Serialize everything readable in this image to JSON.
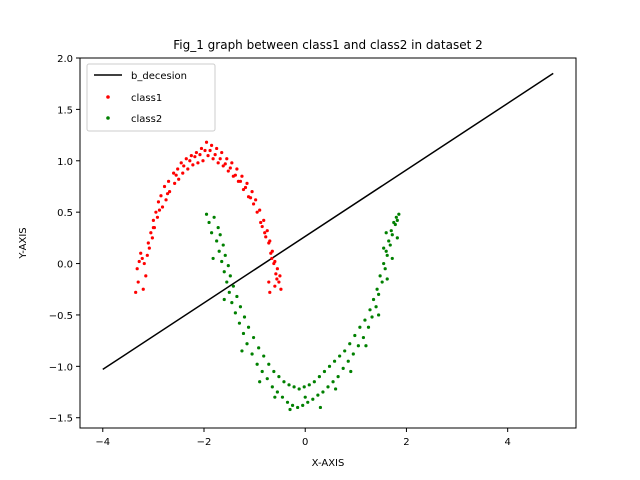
{
  "chart_data": {
    "type": "scatter",
    "title": "Fig_1 graph between class1 and class2 in dataset 2",
    "xlabel": "X-AXIS",
    "ylabel": "Y-AXIS",
    "xlim": [
      -4.45,
      5.35
    ],
    "ylim": [
      -1.6,
      2.0
    ],
    "xticks": [
      -4,
      -2,
      0,
      2,
      4
    ],
    "xtick_labels": [
      "−4",
      "−2",
      "0",
      "2",
      "4"
    ],
    "yticks": [
      -1.5,
      -1.0,
      -0.5,
      0.0,
      0.5,
      1.0,
      1.5,
      2.0
    ],
    "ytick_labels": [
      "−1.5",
      "−1.0",
      "−0.5",
      "0.0",
      "0.5",
      "1.0",
      "1.5",
      "2.0"
    ],
    "grid": false,
    "legend_position": "top-left",
    "series": [
      {
        "name": "b_decesion",
        "kind": "line",
        "color": "#000000",
        "x": [
          -4.0,
          4.9
        ],
        "y": [
          -1.03,
          1.85
        ]
      },
      {
        "name": "class1",
        "kind": "scatter",
        "color": "#ff0000",
        "points": [
          [
            -3.35,
            -0.28
          ],
          [
            -3.3,
            -0.18
          ],
          [
            -3.32,
            -0.05
          ],
          [
            -3.28,
            0.02
          ],
          [
            -3.25,
            0.1
          ],
          [
            -3.2,
            -0.25
          ],
          [
            -3.15,
            -0.12
          ],
          [
            -3.18,
            0.0
          ],
          [
            -3.1,
            0.2
          ],
          [
            -3.12,
            0.08
          ],
          [
            -3.05,
            0.3
          ],
          [
            -3.08,
            0.15
          ],
          [
            -3.0,
            0.42
          ],
          [
            -3.02,
            0.25
          ],
          [
            -2.95,
            0.5
          ],
          [
            -2.98,
            0.35
          ],
          [
            -2.9,
            0.6
          ],
          [
            -2.92,
            0.45
          ],
          [
            -2.85,
            0.66
          ],
          [
            -2.82,
            0.55
          ],
          [
            -2.78,
            0.75
          ],
          [
            -2.75,
            0.62
          ],
          [
            -2.7,
            0.8
          ],
          [
            -2.68,
            0.7
          ],
          [
            -2.6,
            0.88
          ],
          [
            -2.58,
            0.78
          ],
          [
            -2.52,
            0.92
          ],
          [
            -2.5,
            0.82
          ],
          [
            -2.45,
            0.98
          ],
          [
            -2.42,
            0.88
          ],
          [
            -2.35,
            1.02
          ],
          [
            -2.32,
            0.92
          ],
          [
            -2.25,
            1.05
          ],
          [
            -2.22,
            0.96
          ],
          [
            -2.15,
            1.08
          ],
          [
            -2.12,
            0.98
          ],
          [
            -2.05,
            1.12
          ],
          [
            -2.02,
            1.0
          ],
          [
            -1.95,
            1.18
          ],
          [
            -1.92,
            1.05
          ],
          [
            -1.85,
            1.15
          ],
          [
            -1.82,
            1.02
          ],
          [
            -1.75,
            1.12
          ],
          [
            -1.72,
            0.98
          ],
          [
            -1.65,
            1.08
          ],
          [
            -1.62,
            0.95
          ],
          [
            -1.55,
            1.02
          ],
          [
            -1.52,
            0.9
          ],
          [
            -1.45,
            0.98
          ],
          [
            -1.42,
            0.85
          ],
          [
            -1.35,
            0.92
          ],
          [
            -1.32,
            0.8
          ],
          [
            -1.25,
            0.85
          ],
          [
            -1.22,
            0.72
          ],
          [
            -1.15,
            0.78
          ],
          [
            -1.12,
            0.65
          ],
          [
            -1.05,
            0.7
          ],
          [
            -1.02,
            0.58
          ],
          [
            -0.98,
            0.62
          ],
          [
            -0.95,
            0.5
          ],
          [
            -0.9,
            0.52
          ],
          [
            -0.88,
            0.4
          ],
          [
            -0.82,
            0.42
          ],
          [
            -0.8,
            0.3
          ],
          [
            -0.75,
            0.32
          ],
          [
            -0.72,
            0.2
          ],
          [
            -0.7,
            0.22
          ],
          [
            -0.68,
            0.1
          ],
          [
            -0.65,
            0.12
          ],
          [
            -0.62,
            0.0
          ],
          [
            -0.6,
            0.02
          ],
          [
            -0.58,
            -0.1
          ],
          [
            -0.55,
            -0.05
          ],
          [
            -0.52,
            -0.18
          ],
          [
            -0.5,
            -0.12
          ],
          [
            -0.48,
            -0.25
          ],
          [
            -0.7,
            -0.28
          ],
          [
            -0.72,
            -0.18
          ],
          [
            -0.6,
            -0.22
          ],
          [
            -3.22,
            0.05
          ],
          [
            -3.0,
            0.35
          ],
          [
            -2.88,
            0.52
          ],
          [
            -2.72,
            0.68
          ],
          [
            -2.55,
            0.86
          ],
          [
            -2.4,
            0.95
          ],
          [
            -2.28,
            1.0
          ],
          [
            -2.18,
            1.04
          ],
          [
            -2.08,
            1.06
          ],
          [
            -1.98,
            1.1
          ],
          [
            -1.88,
            1.1
          ],
          [
            -1.78,
            1.06
          ],
          [
            -1.68,
            1.02
          ],
          [
            -1.58,
            0.97
          ],
          [
            -1.48,
            0.93
          ],
          [
            -1.38,
            0.86
          ],
          [
            -1.28,
            0.8
          ],
          [
            -1.18,
            0.74
          ],
          [
            -1.08,
            0.64
          ],
          [
            -0.85,
            0.36
          ],
          [
            -0.78,
            0.26
          ],
          [
            -0.66,
            0.05
          ],
          [
            -0.56,
            -0.15
          ]
        ]
      },
      {
        "name": "class2",
        "kind": "scatter",
        "color": "#008000",
        "points": [
          [
            -1.95,
            0.48
          ],
          [
            -1.9,
            0.4
          ],
          [
            -1.85,
            0.3
          ],
          [
            -1.8,
            0.45
          ],
          [
            -1.75,
            0.22
          ],
          [
            -1.72,
            0.35
          ],
          [
            -1.7,
            0.12
          ],
          [
            -1.68,
            0.28
          ],
          [
            -1.65,
            0.02
          ],
          [
            -1.62,
            0.18
          ],
          [
            -1.6,
            -0.08
          ],
          [
            -1.58,
            0.08
          ],
          [
            -1.55,
            -0.18
          ],
          [
            -1.52,
            -0.02
          ],
          [
            -1.5,
            -0.28
          ],
          [
            -1.48,
            -0.12
          ],
          [
            -1.45,
            -0.38
          ],
          [
            -1.42,
            -0.22
          ],
          [
            -1.38,
            -0.48
          ],
          [
            -1.35,
            -0.32
          ],
          [
            -1.3,
            -0.58
          ],
          [
            -1.28,
            -0.42
          ],
          [
            -1.22,
            -0.68
          ],
          [
            -1.2,
            -0.52
          ],
          [
            -1.15,
            -0.78
          ],
          [
            -1.12,
            -0.62
          ],
          [
            -1.05,
            -0.88
          ],
          [
            -1.02,
            -0.72
          ],
          [
            -0.95,
            -0.98
          ],
          [
            -0.92,
            -0.82
          ],
          [
            -0.85,
            -1.05
          ],
          [
            -0.82,
            -0.9
          ],
          [
            -0.75,
            -1.12
          ],
          [
            -0.72,
            -0.98
          ],
          [
            -0.65,
            -1.2
          ],
          [
            -0.62,
            -1.05
          ],
          [
            -0.55,
            -1.25
          ],
          [
            -0.52,
            -1.1
          ],
          [
            -0.45,
            -1.3
          ],
          [
            -0.42,
            -1.15
          ],
          [
            -0.35,
            -1.35
          ],
          [
            -0.32,
            -1.18
          ],
          [
            -0.25,
            -1.38
          ],
          [
            -0.22,
            -1.2
          ],
          [
            -0.15,
            -1.4
          ],
          [
            -0.12,
            -1.22
          ],
          [
            -0.05,
            -1.38
          ],
          [
            -0.02,
            -1.2
          ],
          [
            0.05,
            -1.35
          ],
          [
            0.08,
            -1.18
          ],
          [
            0.15,
            -1.32
          ],
          [
            0.18,
            -1.15
          ],
          [
            0.25,
            -1.28
          ],
          [
            0.28,
            -1.1
          ],
          [
            0.35,
            -1.25
          ],
          [
            0.38,
            -1.05
          ],
          [
            0.45,
            -1.2
          ],
          [
            0.48,
            -1.0
          ],
          [
            0.55,
            -1.15
          ],
          [
            0.58,
            -0.95
          ],
          [
            0.65,
            -1.1
          ],
          [
            0.68,
            -0.9
          ],
          [
            0.75,
            -1.02
          ],
          [
            0.78,
            -0.85
          ],
          [
            0.85,
            -0.95
          ],
          [
            0.88,
            -0.78
          ],
          [
            0.95,
            -0.88
          ],
          [
            0.98,
            -0.7
          ],
          [
            1.05,
            -0.8
          ],
          [
            1.08,
            -0.62
          ],
          [
            1.15,
            -0.72
          ],
          [
            1.18,
            -0.55
          ],
          [
            1.25,
            -0.62
          ],
          [
            1.28,
            -0.45
          ],
          [
            1.32,
            -0.52
          ],
          [
            1.35,
            -0.35
          ],
          [
            1.4,
            -0.42
          ],
          [
            1.42,
            -0.25
          ],
          [
            1.45,
            -0.3
          ],
          [
            1.48,
            -0.12
          ],
          [
            1.52,
            -0.18
          ],
          [
            1.55,
            0.0
          ],
          [
            1.58,
            -0.05
          ],
          [
            1.6,
            0.12
          ],
          [
            1.62,
            0.08
          ],
          [
            1.65,
            0.22
          ],
          [
            1.68,
            0.18
          ],
          [
            1.7,
            0.32
          ],
          [
            1.72,
            0.28
          ],
          [
            1.75,
            0.4
          ],
          [
            1.78,
            0.38
          ],
          [
            1.8,
            0.45
          ],
          [
            1.82,
            0.42
          ],
          [
            1.85,
            0.48
          ],
          [
            1.6,
            0.3
          ],
          [
            1.55,
            0.15
          ],
          [
            -1.82,
            0.05
          ],
          [
            -1.6,
            -0.35
          ],
          [
            -1.25,
            -0.85
          ],
          [
            -0.9,
            -1.15
          ],
          [
            -0.6,
            -1.3
          ],
          [
            -0.3,
            -1.42
          ],
          [
            0.0,
            -1.3
          ],
          [
            0.3,
            -1.4
          ],
          [
            0.6,
            -1.22
          ],
          [
            0.9,
            -1.05
          ],
          [
            1.2,
            -0.8
          ],
          [
            1.45,
            -0.5
          ],
          [
            1.62,
            -0.15
          ],
          [
            1.72,
            0.05
          ],
          [
            1.82,
            0.25
          ]
        ]
      }
    ]
  }
}
